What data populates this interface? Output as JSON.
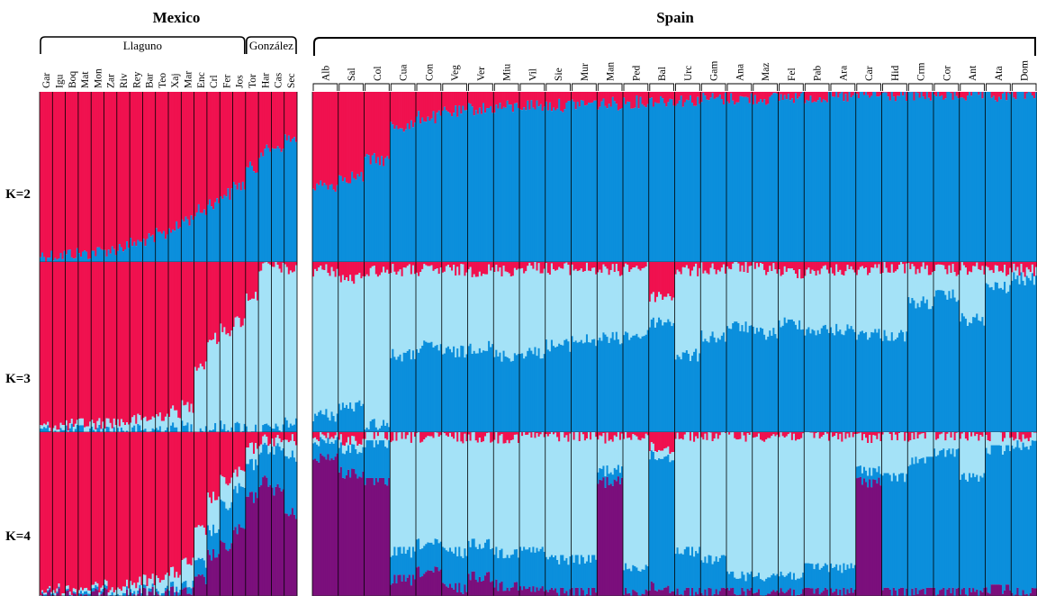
{
  "figure": {
    "panels": [
      {
        "title": "Mexico"
      },
      {
        "title": "Spain"
      }
    ],
    "k_labels": [
      "K=2",
      "K=3",
      "K=4"
    ]
  },
  "colors": {
    "red": "#f0114f",
    "blue": "#0b8fdc",
    "light_blue": "#a4e2f7",
    "purple": "#7b0f7c",
    "divider": "#000000"
  },
  "chart_data": [
    {
      "type": "bar",
      "stacked": true,
      "title": "Mexico",
      "ylim": [
        0,
        1
      ],
      "groups": [
        {
          "label": "Llaguno",
          "populations": [
            "Gar",
            "Igu",
            "Boq",
            "Mat",
            "Mon",
            "Zar",
            "Riv",
            "Rey",
            "Bar",
            "Teo",
            "Xaj",
            "Mar",
            "Enc",
            "Crl",
            "Fer",
            "Jos"
          ]
        },
        {
          "label": "González",
          "populations": [
            "Tor",
            "Har",
            "Cas",
            "Sec"
          ]
        }
      ],
      "populations": [
        "Gar",
        "Igu",
        "Boq",
        "Mat",
        "Mon",
        "Zar",
        "Riv",
        "Rey",
        "Bar",
        "Teo",
        "Xaj",
        "Mar",
        "Enc",
        "Crl",
        "Fer",
        "Jos",
        "Tor",
        "Har",
        "Cas",
        "Sec"
      ],
      "rows": [
        {
          "label": "K=2",
          "clusters": [
            "red",
            "blue"
          ],
          "values": [
            [
              0.96,
              0.04
            ],
            [
              0.96,
              0.04
            ],
            [
              0.95,
              0.05
            ],
            [
              0.95,
              0.05
            ],
            [
              0.94,
              0.06
            ],
            [
              0.93,
              0.07
            ],
            [
              0.91,
              0.09
            ],
            [
              0.89,
              0.11
            ],
            [
              0.87,
              0.13
            ],
            [
              0.84,
              0.16
            ],
            [
              0.8,
              0.2
            ],
            [
              0.75,
              0.25
            ],
            [
              0.7,
              0.3
            ],
            [
              0.65,
              0.35
            ],
            [
              0.6,
              0.4
            ],
            [
              0.55,
              0.45
            ],
            [
              0.45,
              0.55
            ],
            [
              0.35,
              0.65
            ],
            [
              0.32,
              0.68
            ],
            [
              0.28,
              0.72
            ]
          ]
        },
        {
          "label": "K=3",
          "clusters": [
            "red",
            "light_blue",
            "blue"
          ],
          "values": [
            [
              0.97,
              0.02,
              0.01
            ],
            [
              0.96,
              0.03,
              0.01
            ],
            [
              0.96,
              0.03,
              0.01
            ],
            [
              0.95,
              0.04,
              0.01
            ],
            [
              0.95,
              0.04,
              0.01
            ],
            [
              0.94,
              0.05,
              0.01
            ],
            [
              0.94,
              0.05,
              0.01
            ],
            [
              0.93,
              0.06,
              0.01
            ],
            [
              0.92,
              0.07,
              0.01
            ],
            [
              0.9,
              0.08,
              0.02
            ],
            [
              0.88,
              0.1,
              0.02
            ],
            [
              0.85,
              0.12,
              0.03
            ],
            [
              0.6,
              0.38,
              0.02
            ],
            [
              0.45,
              0.53,
              0.02
            ],
            [
              0.4,
              0.57,
              0.03
            ],
            [
              0.35,
              0.62,
              0.03
            ],
            [
              0.2,
              0.78,
              0.02
            ],
            [
              0.03,
              0.95,
              0.02
            ],
            [
              0.03,
              0.95,
              0.02
            ],
            [
              0.05,
              0.9,
              0.05
            ]
          ]
        },
        {
          "label": "K=4",
          "clusters": [
            "red",
            "light_blue",
            "blue",
            "purple"
          ],
          "values": [
            [
              0.97,
              0.01,
              0.01,
              0.01
            ],
            [
              0.96,
              0.02,
              0.01,
              0.01
            ],
            [
              0.96,
              0.02,
              0.01,
              0.01
            ],
            [
              0.95,
              0.02,
              0.02,
              0.01
            ],
            [
              0.95,
              0.02,
              0.02,
              0.01
            ],
            [
              0.94,
              0.03,
              0.02,
              0.01
            ],
            [
              0.93,
              0.04,
              0.02,
              0.01
            ],
            [
              0.92,
              0.05,
              0.02,
              0.01
            ],
            [
              0.9,
              0.06,
              0.02,
              0.02
            ],
            [
              0.88,
              0.08,
              0.02,
              0.02
            ],
            [
              0.86,
              0.09,
              0.03,
              0.02
            ],
            [
              0.8,
              0.14,
              0.04,
              0.02
            ],
            [
              0.6,
              0.2,
              0.1,
              0.1
            ],
            [
              0.4,
              0.2,
              0.15,
              0.25
            ],
            [
              0.3,
              0.15,
              0.25,
              0.3
            ],
            [
              0.25,
              0.1,
              0.25,
              0.4
            ],
            [
              0.1,
              0.1,
              0.2,
              0.6
            ],
            [
              0.05,
              0.05,
              0.2,
              0.7
            ],
            [
              0.05,
              0.05,
              0.25,
              0.65
            ],
            [
              0.05,
              0.1,
              0.35,
              0.5
            ]
          ]
        }
      ]
    },
    {
      "type": "bar",
      "stacked": true,
      "title": "Spain",
      "ylim": [
        0,
        1
      ],
      "populations": [
        "Alb",
        "Sal",
        "Col",
        "Cua",
        "Con",
        "Veg",
        "Ver",
        "Miu",
        "Vil",
        "Sie",
        "Mur",
        "Man",
        "Ped",
        "Bal",
        "Urc",
        "Gam",
        "Ana",
        "Maz",
        "Fel",
        "Pab",
        "Ara",
        "Car",
        "Hid",
        "Crm",
        "Cor",
        "Ant",
        "Ata",
        "Dom"
      ],
      "rows": [
        {
          "label": "K=2",
          "clusters": [
            "red",
            "blue"
          ],
          "values": [
            [
              0.55,
              0.45
            ],
            [
              0.5,
              0.5
            ],
            [
              0.4,
              0.6
            ],
            [
              0.2,
              0.8
            ],
            [
              0.15,
              0.85
            ],
            [
              0.12,
              0.88
            ],
            [
              0.1,
              0.9
            ],
            [
              0.09,
              0.91
            ],
            [
              0.08,
              0.92
            ],
            [
              0.08,
              0.92
            ],
            [
              0.07,
              0.93
            ],
            [
              0.07,
              0.93
            ],
            [
              0.06,
              0.94
            ],
            [
              0.05,
              0.95
            ],
            [
              0.05,
              0.95
            ],
            [
              0.04,
              0.96
            ],
            [
              0.04,
              0.96
            ],
            [
              0.04,
              0.96
            ],
            [
              0.03,
              0.97
            ],
            [
              0.03,
              0.97
            ],
            [
              0.03,
              0.97
            ],
            [
              0.02,
              0.98
            ],
            [
              0.02,
              0.98
            ],
            [
              0.02,
              0.98
            ],
            [
              0.02,
              0.98
            ],
            [
              0.02,
              0.98
            ],
            [
              0.03,
              0.97
            ],
            [
              0.01,
              0.99
            ]
          ]
        },
        {
          "label": "K=3",
          "clusters": [
            "red",
            "light_blue",
            "blue"
          ],
          "values": [
            [
              0.05,
              0.85,
              0.1
            ],
            [
              0.1,
              0.75,
              0.15
            ],
            [
              0.05,
              0.9,
              0.05
            ],
            [
              0.05,
              0.5,
              0.45
            ],
            [
              0.05,
              0.45,
              0.5
            ],
            [
              0.05,
              0.48,
              0.47
            ],
            [
              0.05,
              0.45,
              0.5
            ],
            [
              0.05,
              0.5,
              0.45
            ],
            [
              0.03,
              0.5,
              0.47
            ],
            [
              0.04,
              0.45,
              0.51
            ],
            [
              0.04,
              0.42,
              0.54
            ],
            [
              0.05,
              0.4,
              0.55
            ],
            [
              0.03,
              0.4,
              0.57
            ],
            [
              0.2,
              0.15,
              0.65
            ],
            [
              0.05,
              0.5,
              0.45
            ],
            [
              0.04,
              0.4,
              0.56
            ],
            [
              0.03,
              0.35,
              0.62
            ],
            [
              0.04,
              0.38,
              0.58
            ],
            [
              0.06,
              0.3,
              0.64
            ],
            [
              0.05,
              0.35,
              0.6
            ],
            [
              0.05,
              0.35,
              0.6
            ],
            [
              0.04,
              0.38,
              0.58
            ],
            [
              0.03,
              0.4,
              0.57
            ],
            [
              0.04,
              0.2,
              0.76
            ],
            [
              0.05,
              0.15,
              0.8
            ],
            [
              0.04,
              0.3,
              0.66
            ],
            [
              0.05,
              0.1,
              0.85
            ],
            [
              0.05,
              0.05,
              0.9
            ]
          ]
        },
        {
          "label": "K=4",
          "clusters": [
            "red",
            "light_blue",
            "blue",
            "purple"
          ],
          "values": [
            [
              0.02,
              0.03,
              0.1,
              0.85
            ],
            [
              0.05,
              0.05,
              0.15,
              0.75
            ],
            [
              0.02,
              0.05,
              0.23,
              0.7
            ],
            [
              0.03,
              0.7,
              0.17,
              0.1
            ],
            [
              0.03,
              0.65,
              0.17,
              0.15
            ],
            [
              0.03,
              0.7,
              0.22,
              0.05
            ],
            [
              0.03,
              0.65,
              0.2,
              0.12
            ],
            [
              0.03,
              0.7,
              0.2,
              0.07
            ],
            [
              0.02,
              0.7,
              0.24,
              0.04
            ],
            [
              0.02,
              0.75,
              0.2,
              0.03
            ],
            [
              0.02,
              0.75,
              0.2,
              0.03
            ],
            [
              0.03,
              0.2,
              0.07,
              0.7
            ],
            [
              0.02,
              0.8,
              0.15,
              0.03
            ],
            [
              0.1,
              0.05,
              0.8,
              0.05
            ],
            [
              0.02,
              0.7,
              0.25,
              0.03
            ],
            [
              0.02,
              0.75,
              0.2,
              0.03
            ],
            [
              0.02,
              0.85,
              0.1,
              0.03
            ],
            [
              0.02,
              0.85,
              0.1,
              0.03
            ],
            [
              0.02,
              0.85,
              0.1,
              0.03
            ],
            [
              0.02,
              0.8,
              0.15,
              0.03
            ],
            [
              0.02,
              0.8,
              0.15,
              0.03
            ],
            [
              0.03,
              0.2,
              0.07,
              0.7
            ],
            [
              0.02,
              0.25,
              0.7,
              0.03
            ],
            [
              0.02,
              0.15,
              0.8,
              0.03
            ],
            [
              0.02,
              0.1,
              0.85,
              0.03
            ],
            [
              0.02,
              0.25,
              0.7,
              0.03
            ],
            [
              0.02,
              0.08,
              0.85,
              0.05
            ],
            [
              0.02,
              0.05,
              0.9,
              0.03
            ]
          ]
        }
      ]
    }
  ]
}
